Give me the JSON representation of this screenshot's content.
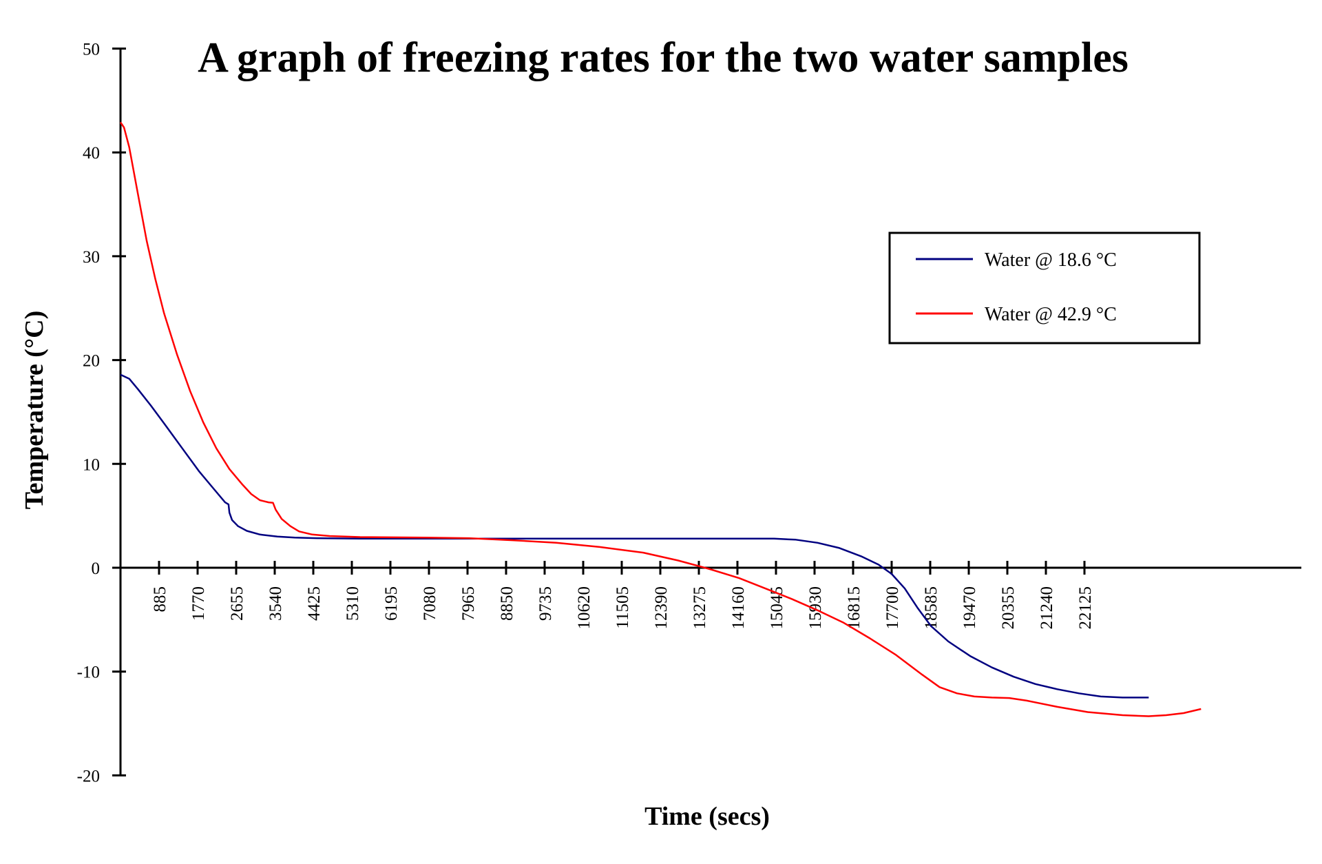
{
  "chart_data": {
    "type": "line",
    "title": "A graph of freezing rates for the two water samples",
    "xlabel": "Time (secs)",
    "ylabel": "Temperature (°C)",
    "xlim": [
      0,
      24000
    ],
    "ylim": [
      -20,
      50
    ],
    "x_ticks": [
      885,
      1770,
      2655,
      3540,
      4425,
      5310,
      6195,
      7080,
      7965,
      8850,
      9735,
      10620,
      11505,
      12390,
      13275,
      14160,
      15045,
      15930,
      16815,
      17700,
      18585,
      19470,
      20355,
      21240,
      22125
    ],
    "y_ticks": [
      50,
      40,
      30,
      20,
      10,
      0,
      -10,
      -20
    ],
    "legend_position": "top-right",
    "series": [
      {
        "name": "Water @ 18.6 °C",
        "color": "#000080",
        "points": [
          [
            0,
            18.6
          ],
          [
            200,
            18.2
          ],
          [
            400,
            17.2
          ],
          [
            700,
            15.6
          ],
          [
            1000,
            13.9
          ],
          [
            1400,
            11.6
          ],
          [
            1800,
            9.3
          ],
          [
            2100,
            7.8
          ],
          [
            2400,
            6.3
          ],
          [
            2480,
            6.1
          ],
          [
            2500,
            5.3
          ],
          [
            2560,
            4.6
          ],
          [
            2700,
            4.0
          ],
          [
            2900,
            3.55
          ],
          [
            3200,
            3.2
          ],
          [
            3600,
            3.0
          ],
          [
            4000,
            2.9
          ],
          [
            4500,
            2.85
          ],
          [
            5500,
            2.8
          ],
          [
            8000,
            2.8
          ],
          [
            10000,
            2.8
          ],
          [
            13000,
            2.8
          ],
          [
            15000,
            2.8
          ],
          [
            15500,
            2.7
          ],
          [
            16000,
            2.4
          ],
          [
            16500,
            1.9
          ],
          [
            17000,
            1.1
          ],
          [
            17400,
            0.3
          ],
          [
            17700,
            -0.6
          ],
          [
            18000,
            -2.0
          ],
          [
            18300,
            -3.9
          ],
          [
            18600,
            -5.6
          ],
          [
            19000,
            -7.1
          ],
          [
            19500,
            -8.5
          ],
          [
            20000,
            -9.6
          ],
          [
            20500,
            -10.5
          ],
          [
            21000,
            -11.2
          ],
          [
            21500,
            -11.7
          ],
          [
            22000,
            -12.1
          ],
          [
            22500,
            -12.4
          ],
          [
            23000,
            -12.5
          ],
          [
            23600,
            -12.5
          ]
        ]
      },
      {
        "name": "Water @ 42.9 °C",
        "color": "#ff0000",
        "points": [
          [
            0,
            42.9
          ],
          [
            80,
            42.4
          ],
          [
            200,
            40.5
          ],
          [
            400,
            36.0
          ],
          [
            600,
            31.5
          ],
          [
            800,
            27.8
          ],
          [
            1000,
            24.5
          ],
          [
            1300,
            20.5
          ],
          [
            1600,
            17.0
          ],
          [
            1900,
            14.0
          ],
          [
            2200,
            11.5
          ],
          [
            2500,
            9.5
          ],
          [
            2800,
            8.0
          ],
          [
            3000,
            7.1
          ],
          [
            3200,
            6.5
          ],
          [
            3400,
            6.3
          ],
          [
            3500,
            6.25
          ],
          [
            3560,
            5.6
          ],
          [
            3700,
            4.7
          ],
          [
            3900,
            4.0
          ],
          [
            4100,
            3.5
          ],
          [
            4400,
            3.2
          ],
          [
            4800,
            3.05
          ],
          [
            5500,
            2.95
          ],
          [
            7000,
            2.9
          ],
          [
            8000,
            2.85
          ],
          [
            9000,
            2.65
          ],
          [
            10000,
            2.4
          ],
          [
            11000,
            2.0
          ],
          [
            12000,
            1.45
          ],
          [
            12800,
            0.7
          ],
          [
            13500,
            -0.1
          ],
          [
            14200,
            -1.0
          ],
          [
            14800,
            -2.0
          ],
          [
            15400,
            -3.0
          ],
          [
            16000,
            -4.1
          ],
          [
            16600,
            -5.3
          ],
          [
            17200,
            -6.8
          ],
          [
            17800,
            -8.4
          ],
          [
            18400,
            -10.3
          ],
          [
            18800,
            -11.5
          ],
          [
            19200,
            -12.1
          ],
          [
            19600,
            -12.4
          ],
          [
            20000,
            -12.5
          ],
          [
            20400,
            -12.55
          ],
          [
            20800,
            -12.8
          ],
          [
            21500,
            -13.4
          ],
          [
            22200,
            -13.9
          ],
          [
            23000,
            -14.2
          ],
          [
            23600,
            -14.3
          ],
          [
            24000,
            -14.2
          ],
          [
            24400,
            -14.0
          ],
          [
            24800,
            -13.6
          ]
        ]
      }
    ]
  }
}
